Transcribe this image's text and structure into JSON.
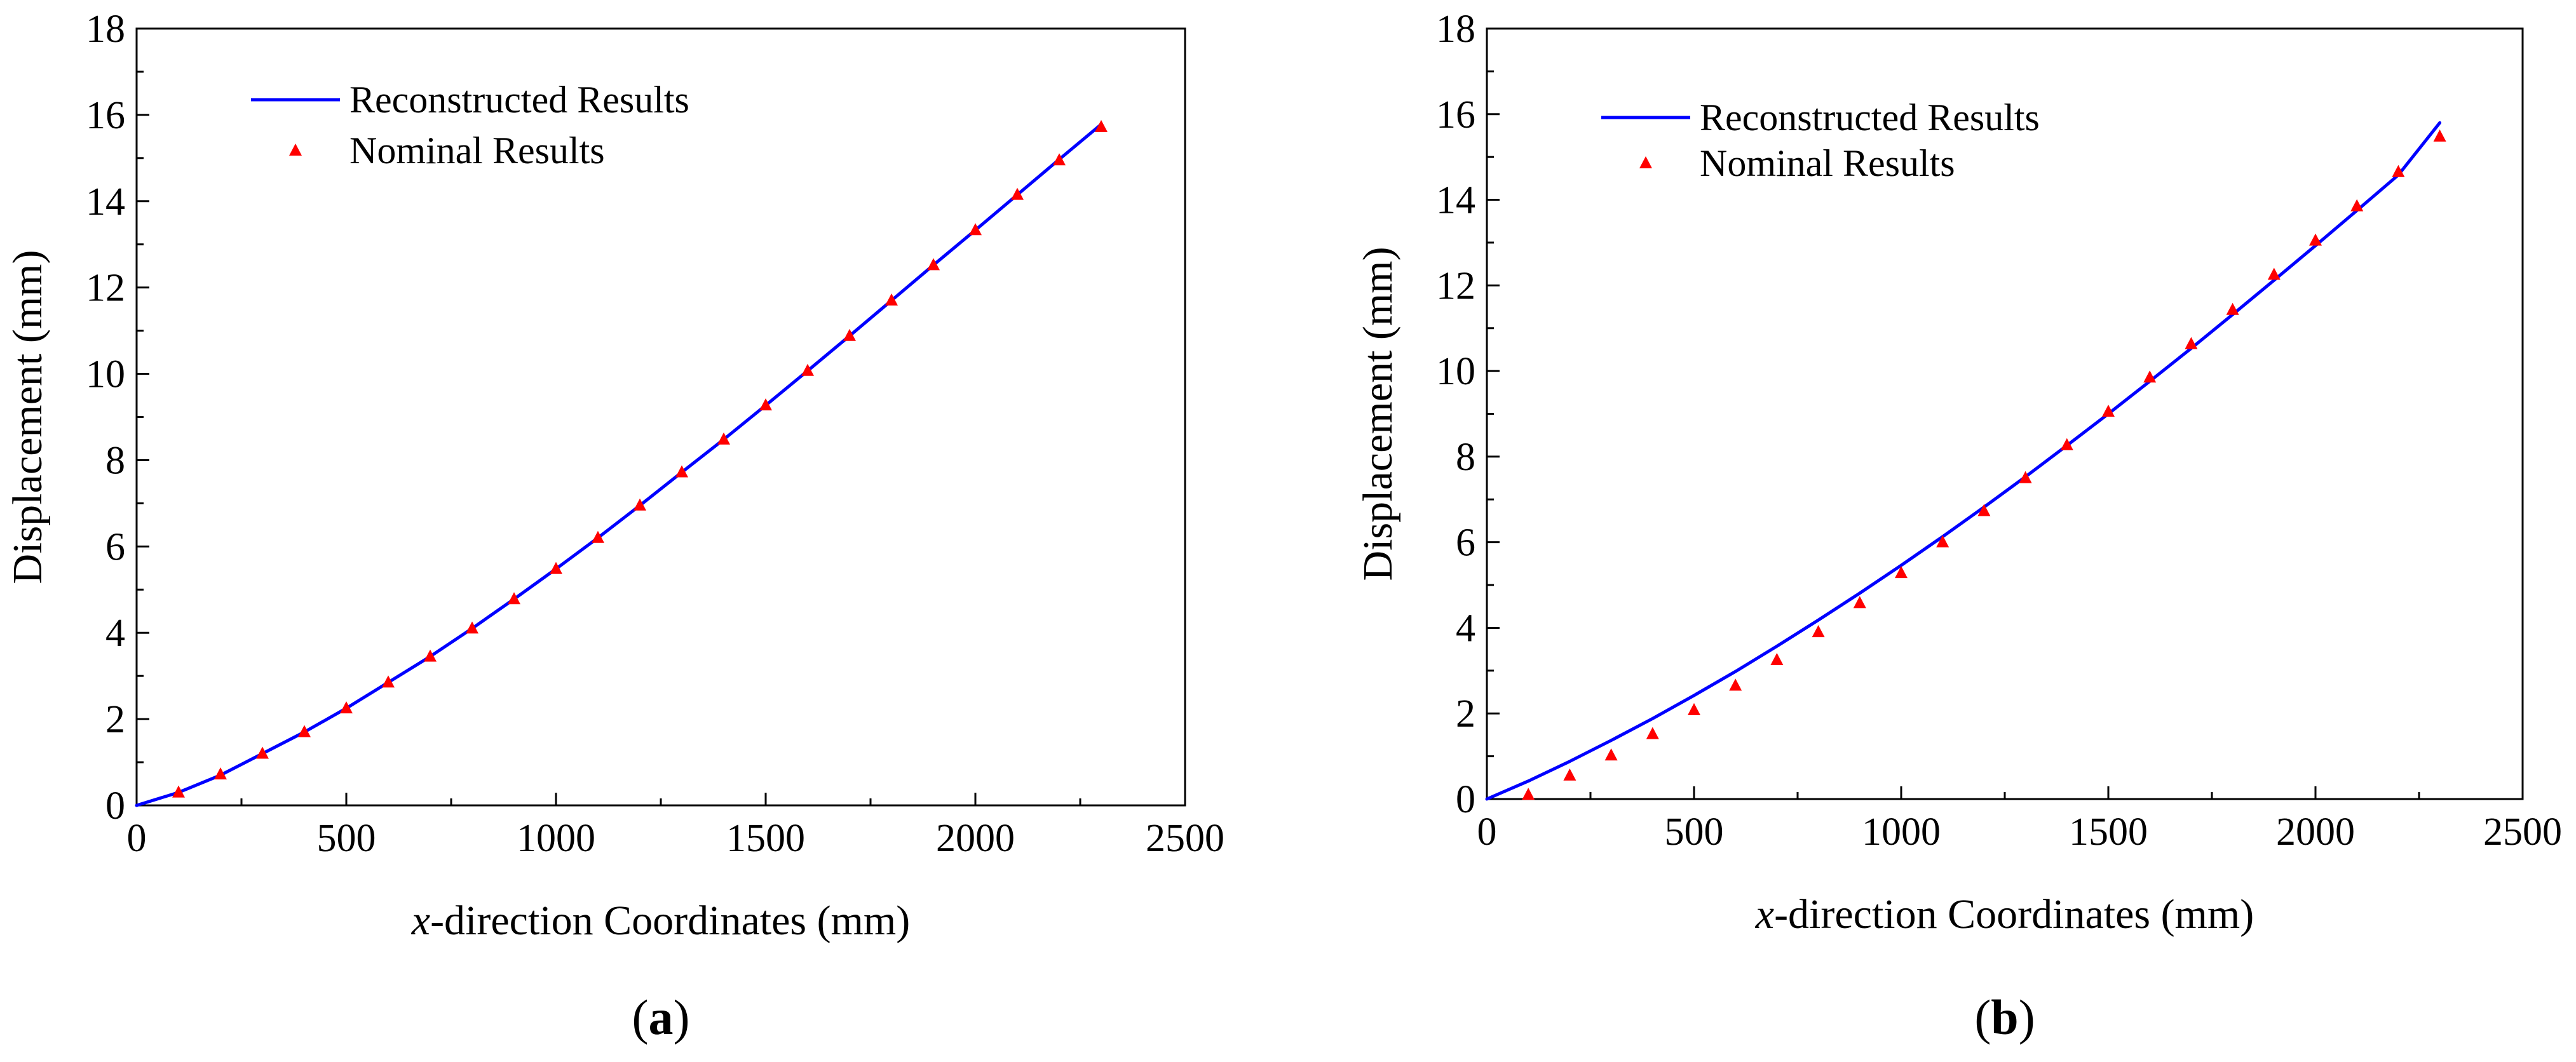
{
  "chart_data": [
    {
      "type": "line+scatter",
      "panel_label": "a",
      "xlabel_italic": "x",
      "xlabel_rest": "-direction Coordinates (mm)",
      "ylabel": "Displacement (mm)",
      "xlim": [
        0,
        2500
      ],
      "ylim": [
        0,
        18
      ],
      "xticks": [
        0,
        500,
        1000,
        1500,
        2000,
        2500
      ],
      "yticks": [
        0,
        2,
        4,
        6,
        8,
        10,
        12,
        14,
        16,
        18
      ],
      "grid": false,
      "legend_position": "top-left",
      "series": [
        {
          "name": "Reconstructed Results",
          "kind": "line",
          "color": "#0000ff",
          "x": [
            0,
            100,
            200,
            300,
            400,
            500,
            600,
            700,
            800,
            900,
            1000,
            1100,
            1200,
            1300,
            1400,
            1500,
            1600,
            1700,
            1800,
            1900,
            2000,
            2100,
            2200,
            2300
          ],
          "y": [
            0,
            0.3,
            0.7,
            1.2,
            1.7,
            2.25,
            2.85,
            3.45,
            4.1,
            4.78,
            5.48,
            6.2,
            6.95,
            7.72,
            8.48,
            9.27,
            10.07,
            10.88,
            11.7,
            12.52,
            13.33,
            14.15,
            14.97,
            15.78
          ]
        },
        {
          "name": "Nominal Results",
          "kind": "scatter",
          "marker": "triangle",
          "color": "#ff0000",
          "x": [
            100,
            200,
            300,
            400,
            500,
            600,
            700,
            800,
            900,
            1000,
            1100,
            1200,
            1300,
            1400,
            1500,
            1600,
            1700,
            1800,
            1900,
            2000,
            2100,
            2200,
            2300
          ],
          "y": [
            0.3,
            0.72,
            1.2,
            1.7,
            2.25,
            2.85,
            3.45,
            4.1,
            4.78,
            5.48,
            6.2,
            6.95,
            7.72,
            8.48,
            9.27,
            10.07,
            10.88,
            11.7,
            12.52,
            13.33,
            14.15,
            14.95,
            15.72
          ]
        }
      ]
    },
    {
      "type": "line+scatter",
      "panel_label": "b",
      "xlabel_italic": "x",
      "xlabel_rest": "-direction Coordinates (mm)",
      "ylabel": "Displacement (mm)",
      "xlim": [
        0,
        2500
      ],
      "ylim": [
        0,
        18
      ],
      "xticks": [
        0,
        500,
        1000,
        1500,
        2000,
        2500
      ],
      "yticks": [
        0,
        2,
        4,
        6,
        8,
        10,
        12,
        14,
        16,
        18
      ],
      "grid": false,
      "legend_position": "top-left",
      "series": [
        {
          "name": "Reconstructed Results",
          "kind": "line",
          "color": "#0000ff",
          "x": [
            0,
            100,
            200,
            300,
            400,
            500,
            600,
            700,
            800,
            900,
            1000,
            1100,
            1200,
            1300,
            1400,
            1500,
            1600,
            1700,
            1800,
            1900,
            2000,
            2100,
            2200,
            2300
          ],
          "y": [
            0,
            0.42,
            0.88,
            1.37,
            1.88,
            2.42,
            2.98,
            3.57,
            4.18,
            4.81,
            5.46,
            6.13,
            6.82,
            7.53,
            8.26,
            9.0,
            9.76,
            10.53,
            11.32,
            12.12,
            12.93,
            13.75,
            14.58,
            15.8
          ]
        },
        {
          "name": "Nominal Results",
          "kind": "scatter",
          "marker": "triangle",
          "color": "#ff0000",
          "x": [
            100,
            200,
            300,
            400,
            500,
            600,
            700,
            800,
            900,
            1000,
            1100,
            1200,
            1300,
            1400,
            1500,
            1600,
            1700,
            1800,
            1900,
            2000,
            2100,
            2200,
            2300
          ],
          "y": [
            0.1,
            0.55,
            1.02,
            1.52,
            2.08,
            2.65,
            3.25,
            3.9,
            4.58,
            5.28,
            6.0,
            6.73,
            7.5,
            8.27,
            9.05,
            9.85,
            10.63,
            11.43,
            12.25,
            13.05,
            13.85,
            14.65,
            15.48
          ]
        }
      ]
    }
  ]
}
